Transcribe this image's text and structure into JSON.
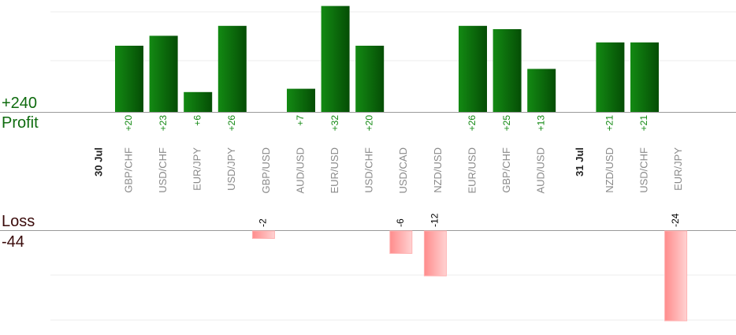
{
  "chart_data": {
    "type": "bar",
    "profit": {
      "total": "+240",
      "label": "Profit",
      "color": "#0b6e0b",
      "value_label_color": "#118811"
    },
    "loss": {
      "total": "-44",
      "label": "Loss",
      "color": "#ff9a9a",
      "value_label_color": "#000000"
    },
    "profit_ylim": [
      0,
      30
    ],
    "loss_ylim": [
      0,
      24
    ],
    "groups": [
      {
        "date": "30 Jul",
        "trades": [
          {
            "pair": "GBP/CHF",
            "value": 20,
            "label": "+20"
          },
          {
            "pair": "USD/CHF",
            "value": 23,
            "label": "+23"
          },
          {
            "pair": "EUR/JPY",
            "value": 6,
            "label": "+6"
          },
          {
            "pair": "USD/JPY",
            "value": 26,
            "label": "+26"
          },
          {
            "pair": "GBP/USD",
            "value": -2,
            "label": "-2"
          },
          {
            "pair": "AUD/USD",
            "value": 7,
            "label": "+7"
          },
          {
            "pair": "EUR/USD",
            "value": 32,
            "label": "+32"
          },
          {
            "pair": "USD/CHF",
            "value": 20,
            "label": "+20"
          },
          {
            "pair": "USD/CAD",
            "value": -6,
            "label": "-6"
          },
          {
            "pair": "NZD/USD",
            "value": -12,
            "label": "-12"
          },
          {
            "pair": "EUR/USD",
            "value": 26,
            "label": "+26"
          },
          {
            "pair": "GBP/CHF",
            "value": 25,
            "label": "+25"
          },
          {
            "pair": "AUD/USD",
            "value": 13,
            "label": "+13"
          }
        ]
      },
      {
        "date": "31 Jul",
        "trades": [
          {
            "pair": "NZD/USD",
            "value": 21,
            "label": "+21"
          },
          {
            "pair": "USD/CHF",
            "value": 21,
            "label": "+21"
          },
          {
            "pair": "EUR/JPY",
            "value": -24,
            "label": "-24"
          }
        ]
      }
    ],
    "grid": true,
    "legend": "none"
  }
}
